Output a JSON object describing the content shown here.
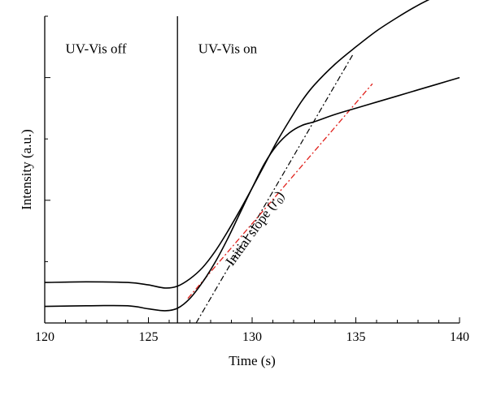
{
  "chart_data": {
    "type": "line",
    "title": "",
    "xlabel": "Time (s)",
    "ylabel": "Intensity (a.u.)",
    "xlim": [
      120,
      140
    ],
    "ylim": [
      0,
      5
    ],
    "x_major_ticks": [
      120,
      125,
      130,
      135,
      140
    ],
    "x_minor_step": 1,
    "y_ticks": [
      0,
      1,
      2,
      3,
      4,
      5
    ],
    "y_tick_labels_shown": false,
    "grid": false,
    "event_marker": {
      "x": 126.4
    },
    "annotations": [
      {
        "text": "UV-Vis off",
        "x": 121.0,
        "y": 4.4
      },
      {
        "text": "UV-Vis on",
        "x": 127.4,
        "y": 4.4
      }
    ],
    "slope_label": {
      "prefix": "Initial slope (",
      "symbol": "r",
      "subscript": "0",
      "suffix": ")",
      "x": 130.3,
      "y": 1.5,
      "angle": -54
    },
    "series": [
      {
        "x": [
          120,
          122,
          124,
          125,
          125.8,
          126.4,
          127.0,
          127.6,
          128.2,
          128.8,
          129.4,
          130.0,
          130.6,
          131.2,
          131.8,
          132.4,
          133,
          134,
          135,
          136,
          137,
          138,
          139
        ],
        "values": [
          0.66,
          0.67,
          0.66,
          0.62,
          0.57,
          0.6,
          0.72,
          0.9,
          1.16,
          1.48,
          1.83,
          2.2,
          2.58,
          2.96,
          3.3,
          3.62,
          3.88,
          4.22,
          4.5,
          4.76,
          4.98,
          5.18,
          5.35
        ]
      },
      {
        "x": [
          120,
          122,
          124,
          125,
          125.8,
          126.4,
          127.0,
          127.6,
          128.2,
          128.8,
          129.4,
          130.0,
          130.6,
          131.2,
          131.8,
          132.4,
          133,
          134,
          135,
          136,
          137,
          138,
          139,
          140
        ],
        "values": [
          0.27,
          0.28,
          0.28,
          0.23,
          0.2,
          0.24,
          0.4,
          0.66,
          0.98,
          1.36,
          1.78,
          2.2,
          2.6,
          2.9,
          3.1,
          3.22,
          3.28,
          3.4,
          3.5,
          3.6,
          3.7,
          3.8,
          3.9,
          4.0
        ]
      }
    ],
    "fit_lines": [
      {
        "color": "#000000",
        "x": [
          127.3,
          134.9
        ],
        "values": [
          0.0,
          4.4
        ]
      },
      {
        "color": "#e0201b",
        "x": [
          126.9,
          135.8
        ],
        "values": [
          0.4,
          3.9
        ]
      }
    ]
  }
}
